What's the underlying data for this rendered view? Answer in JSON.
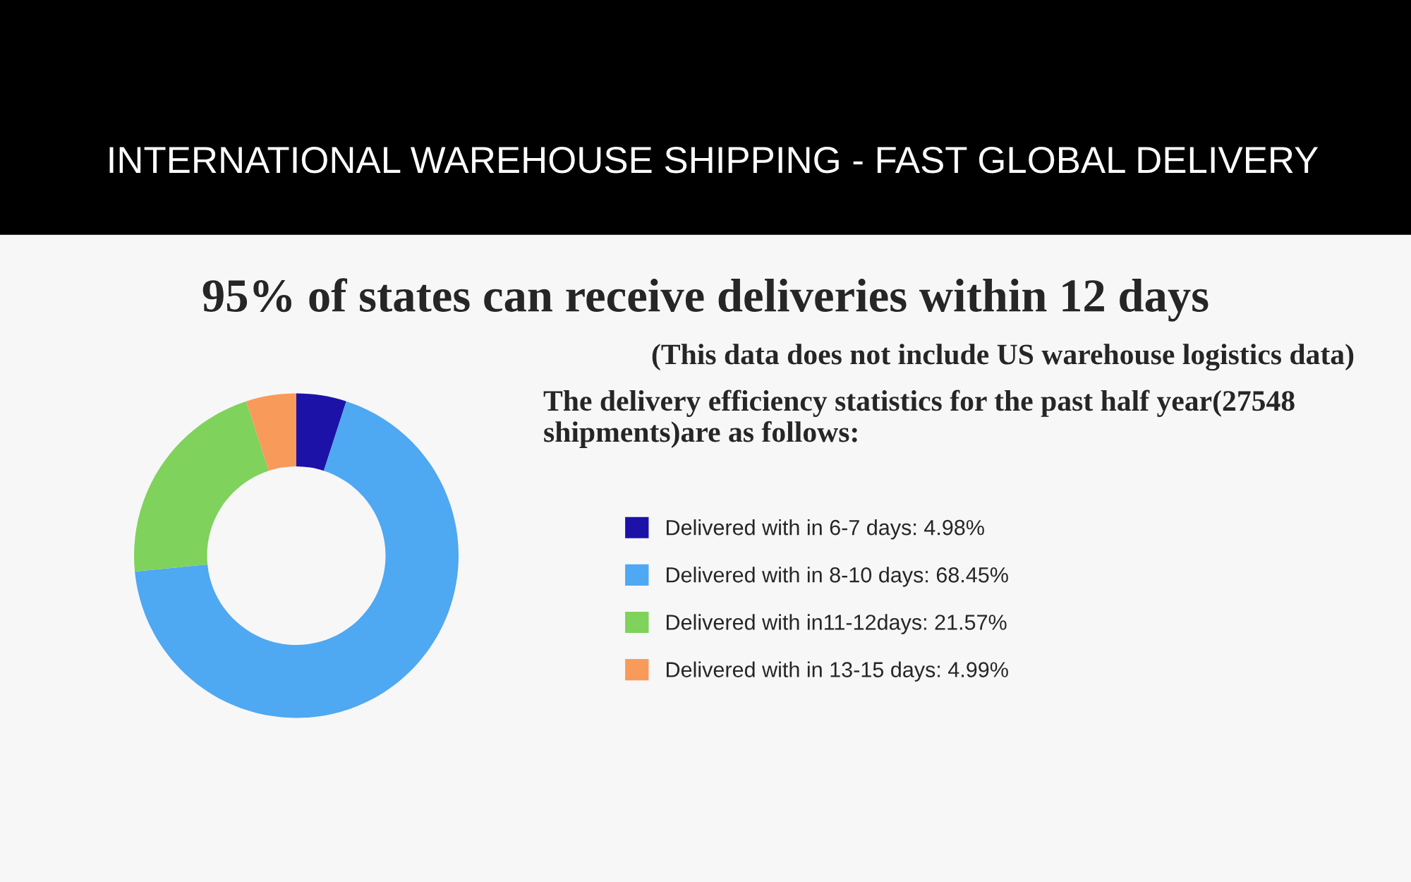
{
  "chart_data": {
    "type": "donut",
    "title": "INTERNATIONAL WAREHOUSE SHIPPING - FAST GLOBAL DELIVERY",
    "subtitle": "95% of states can receive deliveries within 12 days",
    "annotations": [
      "(This data does not include US warehouse logistics data)",
      "The delivery efficiency statistics for the past half year(27548 shipments)are as follows:"
    ],
    "categories": [
      "Delivered with in 6-7 days: 4.98%",
      "Delivered with in 8-10 days: 68.45%",
      "Delivered with in11-12days: 21.57%",
      "Delivered with in 13-15 days: 4.99%"
    ],
    "values": [
      4.98,
      68.45,
      21.57,
      4.99
    ],
    "colors": [
      "#1c12a8",
      "#4ea8f2",
      "#7fd25c",
      "#f89a5a"
    ],
    "legend": "right"
  }
}
